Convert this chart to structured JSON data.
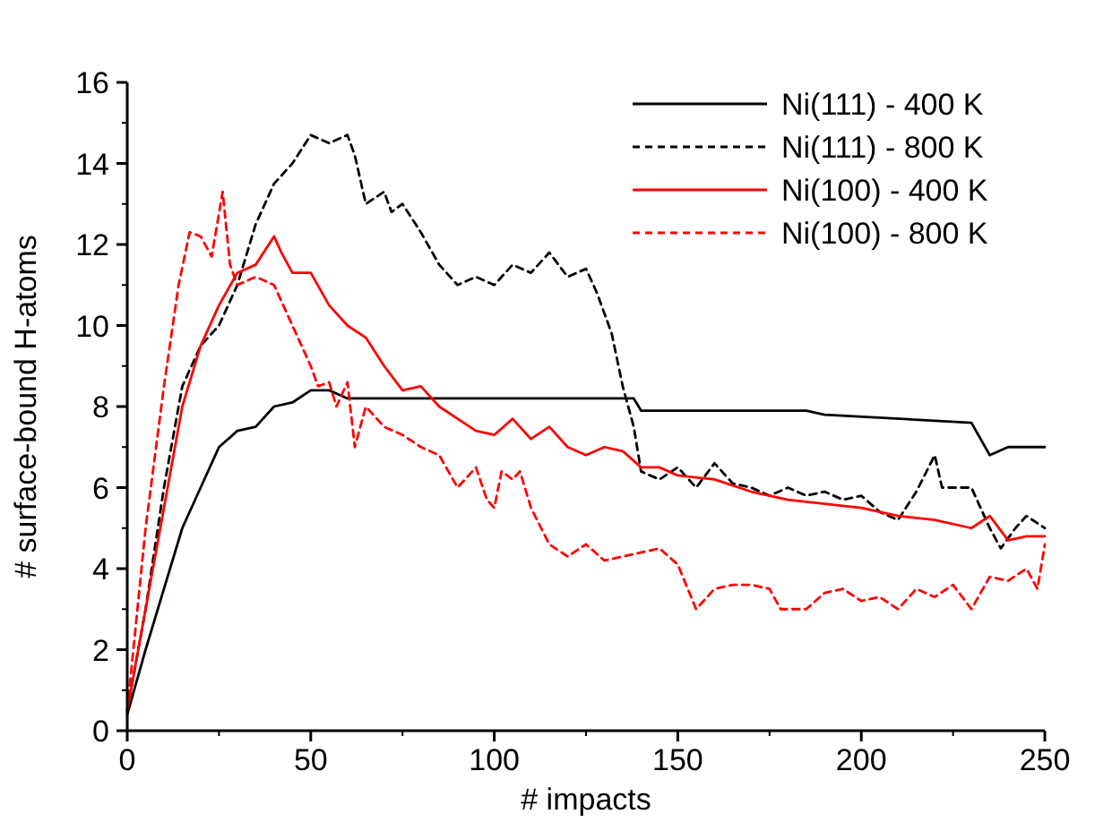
{
  "chart_data": {
    "type": "line",
    "xlabel": "# impacts",
    "ylabel": "# surface-bound H-atoms",
    "xlim": [
      0,
      250
    ],
    "ylim": [
      0,
      16
    ],
    "xticks": [
      0,
      50,
      100,
      150,
      200,
      250
    ],
    "yticks": [
      0,
      2,
      4,
      6,
      8,
      10,
      12,
      14,
      16
    ],
    "legend": "top right",
    "grid": false,
    "marker": "none",
    "series": [
      {
        "name": "Ni(111) - 400 K",
        "color": "#000000",
        "line_style": "solid",
        "x": [
          0,
          5,
          10,
          15,
          20,
          25,
          30,
          35,
          40,
          45,
          50,
          55,
          60,
          138,
          140,
          185,
          190,
          230,
          235,
          240,
          250
        ],
        "values": [
          0.4,
          2,
          3.5,
          5,
          6,
          7,
          7.4,
          7.5,
          8,
          8.1,
          8.4,
          8.4,
          8.2,
          8.2,
          7.9,
          7.9,
          7.8,
          7.6,
          6.8,
          7.0,
          7.0
        ]
      },
      {
        "name": "Ni(111) - 800 K",
        "color": "#000000",
        "line_style": "dashed",
        "x": [
          0,
          5,
          10,
          15,
          20,
          25,
          30,
          35,
          40,
          45,
          50,
          55,
          60,
          62,
          65,
          70,
          72,
          75,
          80,
          85,
          90,
          95,
          100,
          105,
          110,
          115,
          120,
          125,
          128,
          132,
          135,
          138,
          140,
          145,
          150,
          155,
          160,
          165,
          170,
          175,
          180,
          185,
          190,
          195,
          200,
          205,
          210,
          215,
          220,
          222,
          230,
          235,
          238,
          242,
          245,
          250
        ],
        "values": [
          0.5,
          3,
          6,
          8.5,
          9.5,
          10,
          11,
          12.5,
          13.5,
          14,
          14.7,
          14.5,
          14.7,
          14.2,
          13,
          13.3,
          12.8,
          13,
          12.3,
          11.5,
          11,
          11.2,
          11,
          11.5,
          11.3,
          11.8,
          11.2,
          11.4,
          10.8,
          9.8,
          8.5,
          7.5,
          6.4,
          6.2,
          6.5,
          6,
          6.6,
          6.1,
          6,
          5.8,
          6,
          5.8,
          5.9,
          5.7,
          5.8,
          5.4,
          5.2,
          5.9,
          6.8,
          6,
          6,
          5,
          4.5,
          5,
          5.3,
          5
        ]
      },
      {
        "name": "Ni(100) - 400 K",
        "color": "#ff0000",
        "line_style": "solid",
        "x": [
          0,
          5,
          10,
          15,
          20,
          25,
          30,
          35,
          40,
          42,
          45,
          50,
          55,
          60,
          65,
          70,
          75,
          80,
          85,
          90,
          95,
          100,
          105,
          110,
          115,
          120,
          125,
          130,
          135,
          140,
          145,
          150,
          160,
          170,
          180,
          190,
          200,
          210,
          220,
          230,
          235,
          240,
          245,
          250
        ],
        "values": [
          0.5,
          3,
          5.5,
          8,
          9.5,
          10.5,
          11.3,
          11.5,
          12.2,
          11.8,
          11.3,
          11.3,
          10.5,
          10,
          9.7,
          9,
          8.4,
          8.5,
          8,
          7.7,
          7.4,
          7.3,
          7.7,
          7.2,
          7.5,
          7,
          6.8,
          7,
          6.9,
          6.5,
          6.5,
          6.3,
          6.2,
          5.9,
          5.7,
          5.6,
          5.5,
          5.3,
          5.2,
          5,
          5.3,
          4.7,
          4.8,
          4.8
        ]
      },
      {
        "name": "Ni(100) - 800 K",
        "color": "#ff0000",
        "line_style": "dashed",
        "x": [
          0,
          5,
          10,
          14,
          17,
          20,
          23,
          26,
          28,
          30,
          35,
          40,
          45,
          50,
          52,
          55,
          57,
          60,
          62,
          65,
          70,
          75,
          80,
          85,
          90,
          95,
          98,
          100,
          102,
          105,
          107,
          110,
          115,
          120,
          125,
          130,
          135,
          140,
          145,
          150,
          155,
          160,
          165,
          170,
          175,
          178,
          185,
          190,
          195,
          200,
          205,
          210,
          215,
          220,
          225,
          230,
          235,
          240,
          245,
          248,
          250
        ],
        "values": [
          0.5,
          5,
          8.5,
          11,
          12.3,
          12.2,
          11.7,
          13.3,
          11.5,
          11,
          11.2,
          11,
          10,
          9,
          8.5,
          8.6,
          8,
          8.6,
          7,
          8,
          7.5,
          7.3,
          7,
          6.8,
          6,
          6.5,
          5.7,
          5.5,
          6.4,
          6.2,
          6.4,
          5.5,
          4.6,
          4.3,
          4.6,
          4.2,
          4.3,
          4.4,
          4.5,
          4.1,
          3,
          3.5,
          3.6,
          3.6,
          3.5,
          3,
          3,
          3.4,
          3.5,
          3.2,
          3.3,
          3,
          3.5,
          3.3,
          3.6,
          3,
          3.8,
          3.7,
          4,
          3.5,
          4.6
        ]
      }
    ]
  }
}
